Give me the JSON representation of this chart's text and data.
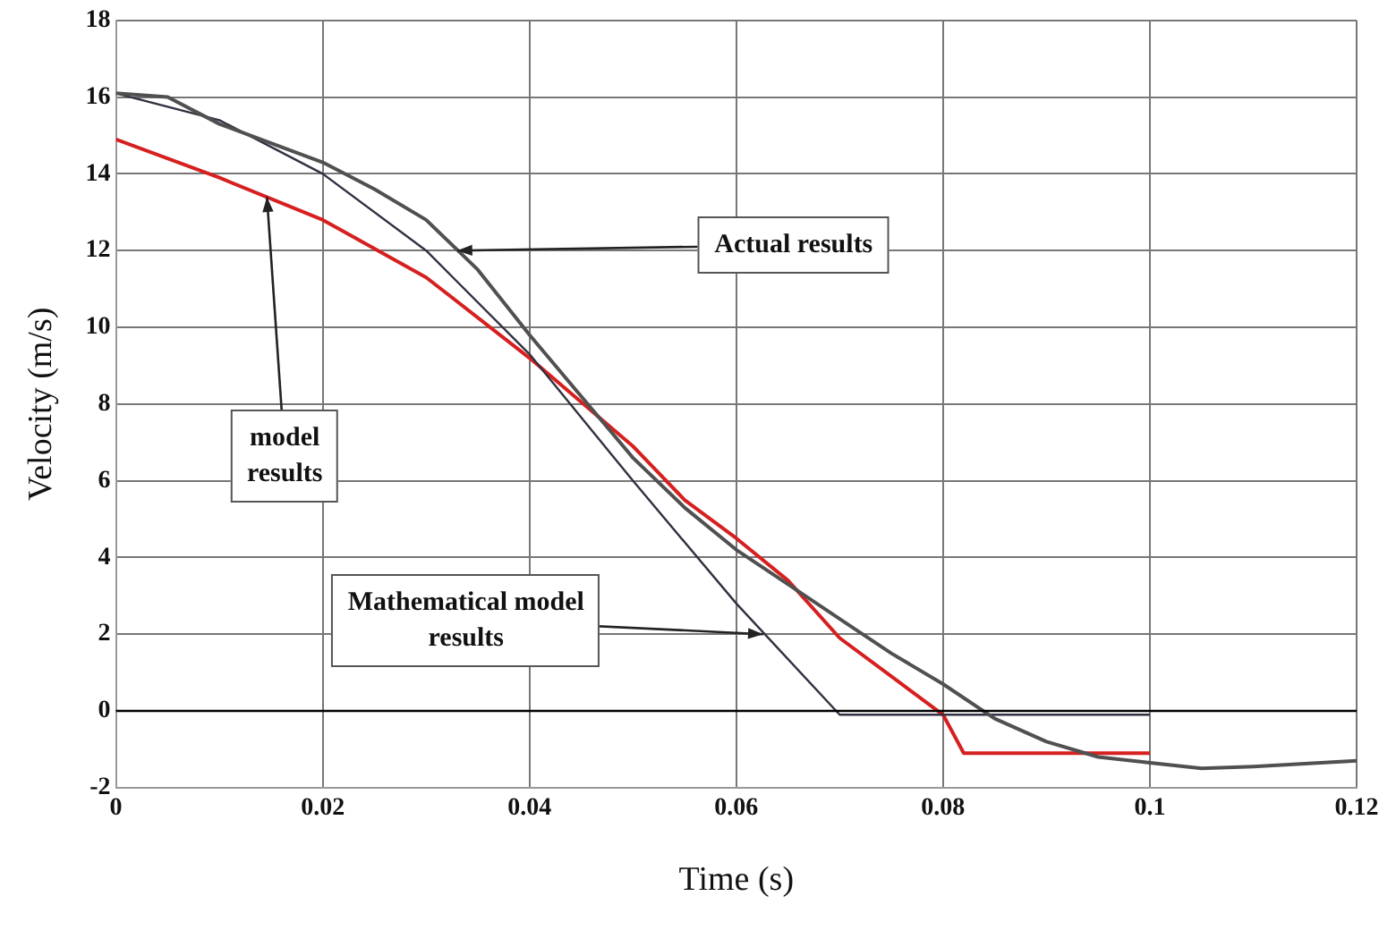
{
  "chart_data": {
    "type": "line",
    "xlabel": "Time (s)",
    "ylabel": "Velocity (m/s)",
    "xlim": [
      0,
      0.12
    ],
    "xticks": [
      0,
      0.02,
      0.04,
      0.06,
      0.08,
      {
        "value": 0.1,
        "label": "0.1"
      },
      0.12
    ],
    "ylim": [
      -2,
      18
    ],
    "yticks": [
      -2,
      0,
      2,
      4,
      6,
      8,
      10,
      12,
      14,
      16,
      18
    ],
    "grid": true,
    "legend": false,
    "marker": "none",
    "line_style": "solid",
    "ref_lines": [
      {
        "axis": "y",
        "value": 0,
        "color": "#000000"
      }
    ],
    "series": [
      {
        "color": "#505050",
        "x": [
          0,
          0.005,
          0.01,
          0.015,
          0.02,
          0.025,
          0.03,
          0.035,
          0.04,
          0.045,
          0.05,
          0.055,
          0.06,
          0.065,
          0.07,
          0.075,
          0.08,
          0.085,
          0.09,
          0.095,
          0.1,
          0.105,
          0.11,
          0.12
        ],
        "values": [
          16.1,
          16.0,
          15.3,
          14.8,
          14.3,
          13.6,
          12.8,
          11.5,
          9.8,
          8.2,
          6.6,
          5.3,
          4.2,
          3.3,
          2.4,
          1.5,
          0.7,
          -0.2,
          -0.8,
          -1.2,
          -1.35,
          -1.5,
          -1.45,
          -1.3
        ]
      },
      {
        "color": "#303040",
        "x": [
          0,
          0.01,
          0.02,
          0.03,
          0.04,
          0.05,
          0.06,
          0.07,
          0.1
        ],
        "values": [
          16.1,
          15.4,
          14.0,
          12.0,
          9.3,
          6.0,
          2.8,
          -0.1,
          -0.1
        ]
      },
      {
        "color": "#d62020",
        "x": [
          0,
          0.01,
          0.02,
          0.03,
          0.04,
          0.05,
          0.055,
          0.06,
          0.065,
          0.07,
          0.075,
          0.08,
          0.082,
          0.1
        ],
        "values": [
          14.9,
          13.9,
          12.8,
          11.3,
          9.2,
          6.9,
          5.5,
          4.5,
          3.4,
          1.9,
          0.9,
          -0.1,
          -1.1,
          -1.1
        ]
      }
    ],
    "annotations": [
      {
        "text": "Actual results",
        "x": 0.033,
        "y": 12.0
      },
      {
        "text": "model\nresults",
        "x": 0.0146,
        "y": 13.4
      },
      {
        "text": "Mathematical model\nresults",
        "x": 0.0626,
        "y": 2.0
      }
    ]
  }
}
